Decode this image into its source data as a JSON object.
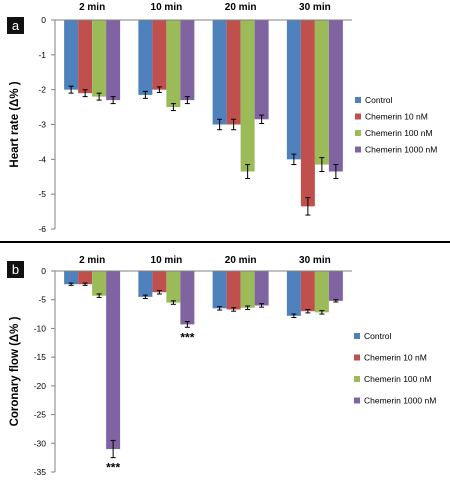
{
  "chart_data": [
    {
      "type": "bar",
      "panel_label": "a",
      "ylabel": "Heart rate (Δ% )",
      "categories": [
        "2 min",
        "10 min",
        "20 min",
        "30 min"
      ],
      "ylim": [
        -6,
        0
      ],
      "yticks": [
        "0",
        "-1",
        "-2",
        "-3",
        "-4",
        "-5",
        "-6"
      ],
      "series": [
        {
          "name": "Control",
          "color": "#4f81bd",
          "values": [
            -2.0,
            -2.15,
            -3.0,
            -4.0
          ],
          "errors": [
            0.1,
            0.1,
            0.15,
            0.15
          ]
        },
        {
          "name": "Chemerin 10 nM",
          "color": "#c0504d",
          "values": [
            -2.1,
            -2.0,
            -3.0,
            -5.35
          ],
          "errors": [
            0.1,
            0.08,
            0.15,
            0.25
          ]
        },
        {
          "name": "Chemerin 100 nM",
          "color": "#9bbb59",
          "values": [
            -2.2,
            -2.5,
            -4.35,
            -4.15
          ],
          "errors": [
            0.1,
            0.1,
            0.2,
            0.2
          ]
        },
        {
          "name": "Chemerin 1000 nM",
          "color": "#8064a2",
          "values": [
            -2.3,
            -2.3,
            -2.85,
            -4.35
          ],
          "errors": [
            0.1,
            0.1,
            0.12,
            0.2
          ]
        }
      ],
      "annotations": []
    },
    {
      "type": "bar",
      "panel_label": "b",
      "ylabel": "Coronary flow (Δ% )",
      "categories": [
        "2  min",
        "10  min",
        "20  min",
        "30  min"
      ],
      "ylim": [
        -35,
        0
      ],
      "yticks": [
        "0",
        "-5",
        "-10",
        "-15",
        "-20",
        "-25",
        "-30",
        "-35"
      ],
      "series": [
        {
          "name": "Control",
          "color": "#4f81bd",
          "values": [
            -2.3,
            -4.5,
            -6.5,
            -7.8
          ],
          "errors": [
            0.2,
            0.3,
            0.3,
            0.3
          ]
        },
        {
          "name": "Chemerin 10 nM",
          "color": "#c0504d",
          "values": [
            -2.3,
            -3.7,
            -6.7,
            -7.0
          ],
          "errors": [
            0.2,
            0.3,
            0.3,
            0.3
          ]
        },
        {
          "name": "Chemerin 100 nM",
          "color": "#9bbb59",
          "values": [
            -4.3,
            -5.5,
            -6.4,
            -7.2
          ],
          "errors": [
            0.3,
            0.3,
            0.3,
            0.3
          ]
        },
        {
          "name": "Chemerin 1000 nM",
          "color": "#8064a2",
          "values": [
            -31.0,
            -9.3,
            -6.0,
            -5.2
          ],
          "errors": [
            1.5,
            0.5,
            0.3,
            0.2
          ]
        }
      ],
      "annotations": [
        {
          "text": "***",
          "series": "Chemerin 1000 nM",
          "category_index": 0
        },
        {
          "text": "***",
          "series": "Chemerin 1000 nM",
          "category_index": 1
        }
      ]
    }
  ]
}
